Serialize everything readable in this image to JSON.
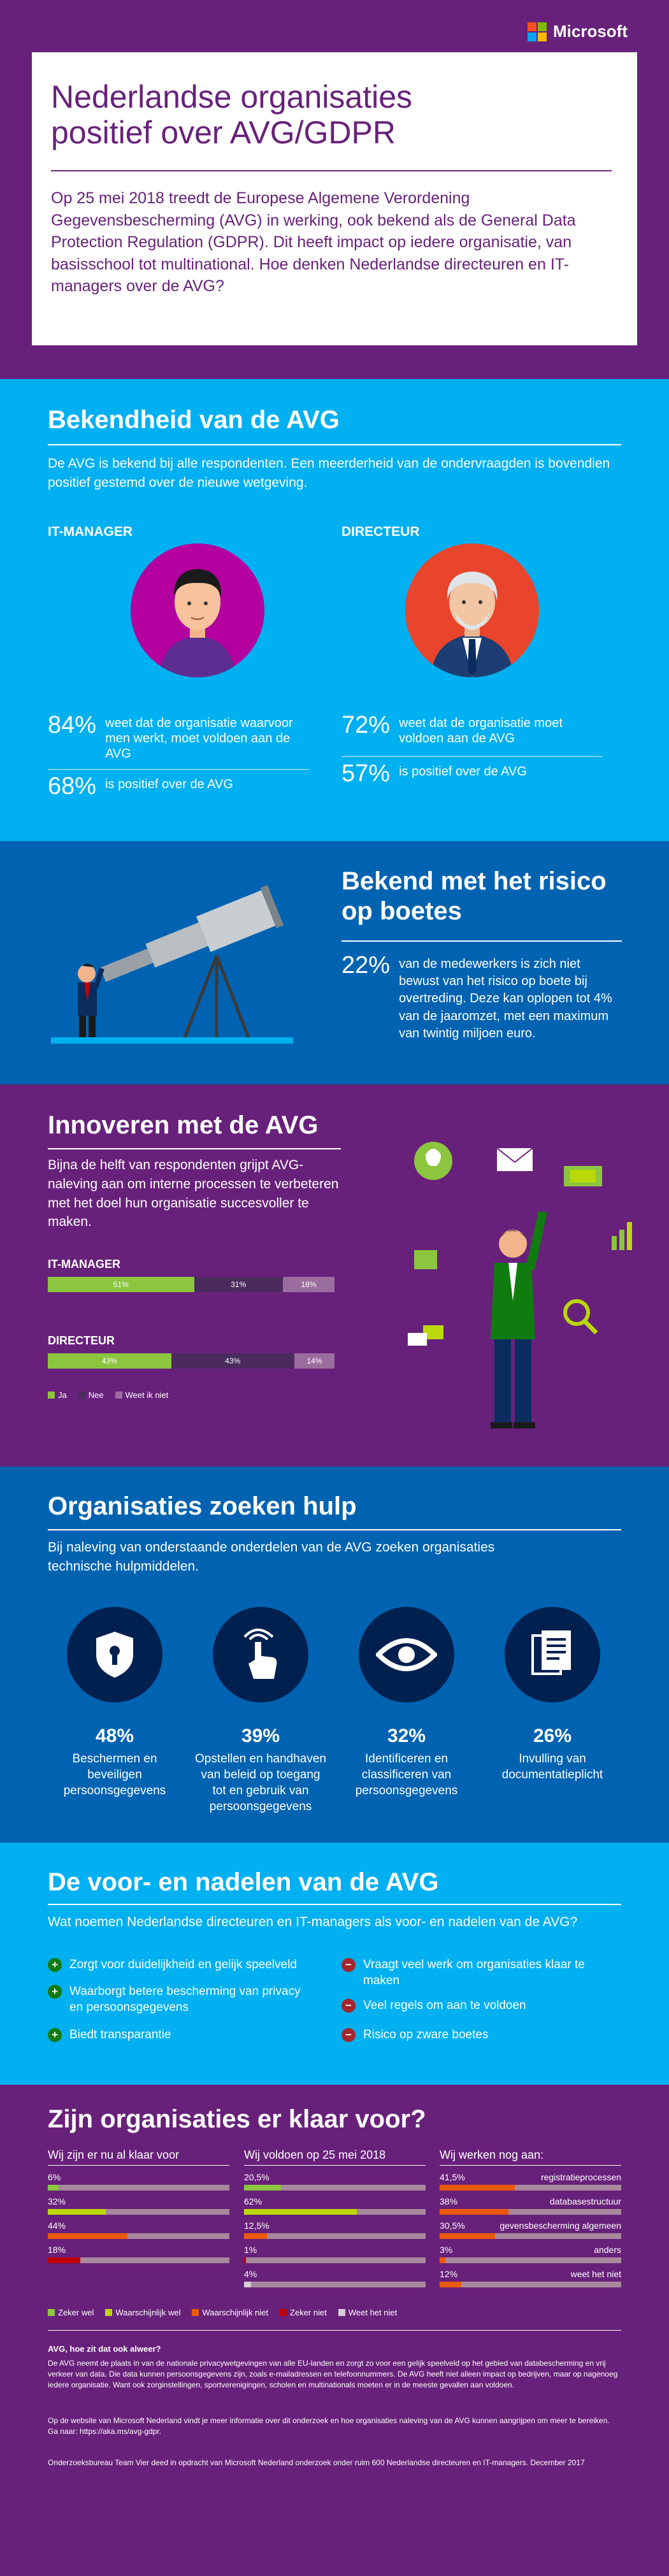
{
  "brand": {
    "name": "Microsoft",
    "logo_colors": [
      "#f25022",
      "#7fba00",
      "#00a4ef",
      "#ffb900"
    ]
  },
  "colors": {
    "purple": "#68217a",
    "light_blue": "#00b0f0",
    "dark_blue": "#0063b1",
    "navy": "#002050",
    "green": "#8cc63f",
    "lime": "#bad80a",
    "orange": "#ea5a0c",
    "red": "#c00000",
    "grey": "#a8889e"
  },
  "header": {
    "title_line1": "Nederlandse organisaties",
    "title_line2": "positief over AVG/GDPR",
    "intro": "Op 25 mei 2018 treedt de Europese Algemene Verordening Gegevensbescherming (AVG) in werking, ook bekend als de General Data Protection Regulation (GDPR). Dit heeft impact op iedere organisatie, van basisschool tot multinational. Hoe denken Nederlandse directeuren en IT-managers over de AVG?"
  },
  "awareness": {
    "title": "Bekendheid van de AVG",
    "intro": "De AVG is bekend bij alle respondenten. Een meerderheid van de ondervraagden is bovendien positief gestemd over de nieuwe wetgeving.",
    "it_manager": {
      "label": "IT-MANAGER",
      "stat1_pct": "84%",
      "stat1_text": "weet dat de organisatie waarvoor men werkt, moet voldoen aan de AVG",
      "stat2_pct": "68%",
      "stat2_text": "is positief over de AVG"
    },
    "director": {
      "label": "DIRECTEUR",
      "stat1_pct": "72%",
      "stat1_text": "weet dat de organisatie moet voldoen aan de AVG",
      "stat2_pct": "57%",
      "stat2_text": "is positief over de AVG"
    }
  },
  "risk": {
    "title_line1": "Bekend met het risico",
    "title_line2": "op boetes",
    "pct": "22%",
    "text": "van de medewerkers is zich niet bewust van het risico op boete bij overtreding. Deze kan oplopen tot 4% van de jaaromzet, met een maximum van twintig miljoen euro."
  },
  "innovate": {
    "title": "Innoveren met de AVG",
    "text": "Bijna de helft van respondenten grijpt AVG-naleving aan om interne processen te verbeteren met het doel hun organisatie succesvoller te maken.",
    "bars": [
      {
        "label": "IT-MANAGER",
        "values": [
          51,
          31,
          18
        ],
        "value_labels": [
          "51%",
          "31%",
          "18%"
        ]
      },
      {
        "label": "DIRECTEUR",
        "values": [
          43,
          43,
          14
        ],
        "value_labels": [
          "43%",
          "43%",
          "14%"
        ]
      }
    ],
    "legend": [
      "Ja",
      "Nee",
      "Weet ik niet"
    ]
  },
  "help": {
    "title": "Organisaties zoeken hulp",
    "intro": "Bij naleving van onderstaande onderdelen van de AVG zoeken organisaties technische hulpmiddelen.",
    "items": [
      {
        "pct": "48%",
        "text": "Beschermen en beveiligen persoonsgegevens",
        "icon": "lock-shield-icon"
      },
      {
        "pct": "39%",
        "text": "Opstellen en handhaven van beleid op toegang tot en gebruik van persoonsgegevens",
        "icon": "touch-hand-icon"
      },
      {
        "pct": "32%",
        "text": "Identificeren en classificeren van persoonsgegevens",
        "icon": "eye-icon"
      },
      {
        "pct": "26%",
        "text": "Invulling van documentatieplicht",
        "icon": "documents-icon"
      }
    ]
  },
  "proscons": {
    "title": "De voor- en nadelen van de AVG",
    "subtitle": "Wat noemen Nederlandse directeuren en IT-managers als voor- en nadelen van de AVG?",
    "pros": [
      "Zorgt voor duidelijkheid en gelijk speelveld",
      "Waarborgt betere bescherming van privacy en persoonsgegevens",
      "Biedt transparantie"
    ],
    "cons": [
      "Vraagt veel werk om organisaties klaar te maken",
      "Veel regels om aan te voldoen",
      "Risico op zware boetes"
    ]
  },
  "ready": {
    "title": "Zijn organisaties er klaar voor?",
    "columns": [
      {
        "header": "Wij zijn er nu al klaar voor",
        "rows": [
          {
            "pct": "6%",
            "value": 6,
            "color": "#8cc63f"
          },
          {
            "pct": "32%",
            "value": 32,
            "color": "#bad80a"
          },
          {
            "pct": "44%",
            "value": 44,
            "color": "#ea5a0c"
          },
          {
            "pct": "18%",
            "value": 18,
            "color": "#c00000"
          }
        ]
      },
      {
        "header": "Wij voldoen op 25 mei 2018",
        "rows": [
          {
            "pct": "20,5%",
            "value": 20.5,
            "color": "#8cc63f"
          },
          {
            "pct": "62%",
            "value": 62,
            "color": "#bad80a"
          },
          {
            "pct": "12,5%",
            "value": 12.5,
            "color": "#ea5a0c"
          },
          {
            "pct": "1%",
            "value": 1,
            "color": "#c00000"
          },
          {
            "pct": "4%",
            "value": 4,
            "color": "#d9cdd6"
          }
        ]
      },
      {
        "header": "Wij werken nog aan:",
        "rows": [
          {
            "pct": "41,5%",
            "value": 41.5,
            "color": "#ea5a0c",
            "label": "registratieprocessen"
          },
          {
            "pct": "38%",
            "value": 38,
            "color": "#ea5a0c",
            "label": "databasestructuur"
          },
          {
            "pct": "30,5%",
            "value": 30.5,
            "color": "#ea5a0c",
            "label": "gevensbescherming algemeen"
          },
          {
            "pct": "3%",
            "value": 3,
            "color": "#ea5a0c",
            "label": "anders"
          },
          {
            "pct": "12%",
            "value": 12,
            "color": "#ea5a0c",
            "label": "weet het niet"
          }
        ]
      }
    ],
    "legend": [
      {
        "label": "Zeker wel",
        "color": "#8cc63f"
      },
      {
        "label": "Waarschijnlijk wel",
        "color": "#bad80a"
      },
      {
        "label": "Waarschijnlijk niet",
        "color": "#ea5a0c"
      },
      {
        "label": "Zeker niet",
        "color": "#c00000"
      },
      {
        "label": "Weet het niet",
        "color": "#d9cdd6"
      }
    ]
  },
  "footer": {
    "question": "AVG, hoe zit dat ook alweer?",
    "p1": "De AVG neemt de plaats in van de nationale privacywetgevingen van alle EU-landen en zorgt zo voor een gelijk speelveld op het gebied van databescherming en vrij verkeer van data. Die data kunnen persoonsgegevens zijn, zoals e-mailadressen en telefoonnummers. De AVG heeft niet alleen impact op bedrijven, maar op nagenoeg iedere organisatie. Want ook zorginstellingen, sportverenigingen, scholen en multinationals moeten er in de meeste gevallen aan voldoen.",
    "p2": "Op de website van Microsoft Nederland vindt je meer informatie over dit onderzoek en hoe organisaties naleving van de AVG kunnen aangrijpen om meer te bereiken. Ga naar: https://aka.ms/avg-gdpr.",
    "p3": "Onderzoeksbureau Team Vier deed in opdracht van Microsoft Nederland onderzoek onder ruim 600 Nederlandse directeuren en IT-managers. December 2017"
  }
}
